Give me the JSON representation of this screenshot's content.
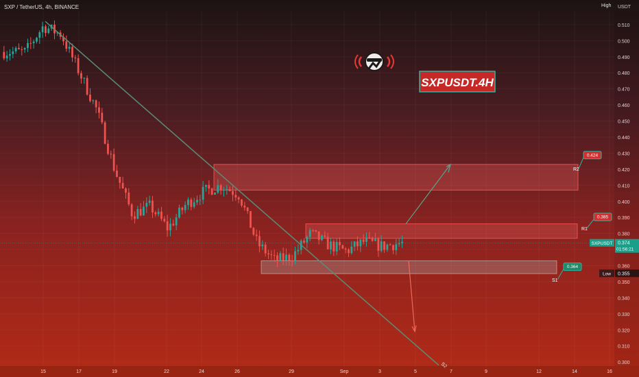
{
  "header": {
    "symbol_line": "SXP / TetherUS, 4h, BINANCE",
    "scale_label": "High",
    "currency_label": "USDT"
  },
  "watermark": {
    "title": "SXPUSDT.4H",
    "logo_icon": "robot-head-broadcast-icon"
  },
  "chart_data": {
    "type": "candlestick",
    "title": "",
    "xlabel": "",
    "ylabel": "",
    "ylim": [
      0.2975,
      0.5185
    ],
    "y_ticks": [
      0.51,
      0.5,
      0.49,
      0.48,
      0.47,
      0.46,
      0.45,
      0.44,
      0.43,
      0.42,
      0.41,
      0.4,
      0.39,
      0.38,
      0.37,
      0.36,
      0.35,
      0.34,
      0.33,
      0.32,
      0.31,
      0.3
    ],
    "x_ticks": [
      "15",
      "17",
      "19",
      "22",
      "24",
      "26",
      "29",
      "Sep",
      "3",
      "5",
      "7",
      "9",
      "12",
      "14",
      "16"
    ],
    "colors": {
      "up": "#26a69a",
      "down": "#ef5350",
      "trendline": "#5a8d75",
      "zone_fill": "rgba(235,95,95,0.30)",
      "zone_border": "#e84f4f",
      "support_fill": "rgba(170,170,170,0.32)"
    },
    "series": [
      {
        "sample_points": [
          {
            "x": "14",
            "y": 0.493
          },
          {
            "x": "15",
            "y": 0.509
          },
          {
            "x": "16",
            "y": 0.504
          },
          {
            "x": "17",
            "y": 0.481
          },
          {
            "x": "18",
            "y": 0.457
          },
          {
            "x": "19",
            "y": 0.42
          },
          {
            "x": "20",
            "y": 0.392
          },
          {
            "x": "21",
            "y": 0.397
          },
          {
            "x": "22",
            "y": 0.383
          },
          {
            "x": "23",
            "y": 0.398
          },
          {
            "x": "24",
            "y": 0.406
          },
          {
            "x": "25",
            "y": 0.41
          },
          {
            "x": "26",
            "y": 0.404
          },
          {
            "x": "27",
            "y": 0.374
          },
          {
            "x": "28",
            "y": 0.363
          },
          {
            "x": "29",
            "y": 0.366
          },
          {
            "x": "30",
            "y": 0.38
          },
          {
            "x": "31",
            "y": 0.373
          },
          {
            "x": "Sep",
            "y": 0.369
          },
          {
            "x": "2",
            "y": 0.375
          },
          {
            "x": "3",
            "y": 0.372
          },
          {
            "x": "4",
            "y": 0.374
          }
        ]
      }
    ],
    "zones": [
      {
        "name": "R2",
        "from": 0.407,
        "to": 0.423,
        "value": "0.424"
      },
      {
        "name": "R1",
        "from": 0.377,
        "to": 0.386,
        "value": "0.385"
      },
      {
        "name": "S1",
        "from": 0.355,
        "to": 0.363,
        "value": "0.364"
      }
    ],
    "trendline_label": "S2",
    "current_price": {
      "symbol": "SXPUSDT",
      "value": "0.374",
      "countdown": "01:56:21"
    },
    "low": {
      "label": "Low",
      "value": "0.355"
    }
  }
}
